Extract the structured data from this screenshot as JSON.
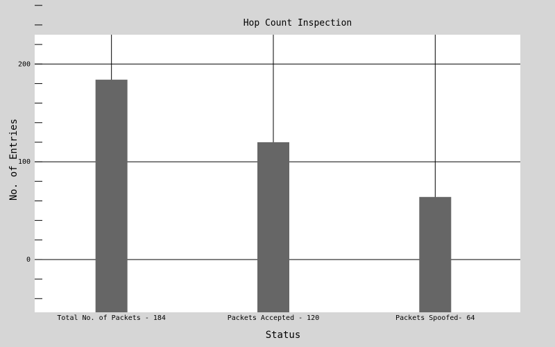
{
  "chart_data": {
    "type": "bar",
    "title": "Hop Count Inspection",
    "xlabel": "Status",
    "ylabel": "No. of Entries",
    "categories": [
      "Total No. of Packets - 184",
      "Packets Accepted - 120",
      "Packets Spoofed- 64"
    ],
    "values": [
      184,
      120,
      64
    ],
    "ylim": [
      -54,
      230
    ],
    "yticks": [
      0,
      100,
      200
    ],
    "y_minor_step": 20,
    "grid": true,
    "legend": "none",
    "colors": {
      "background": "#d6d6d6",
      "plot_area": "#ffffff",
      "bar": "#666666",
      "grid": "#000000"
    }
  }
}
